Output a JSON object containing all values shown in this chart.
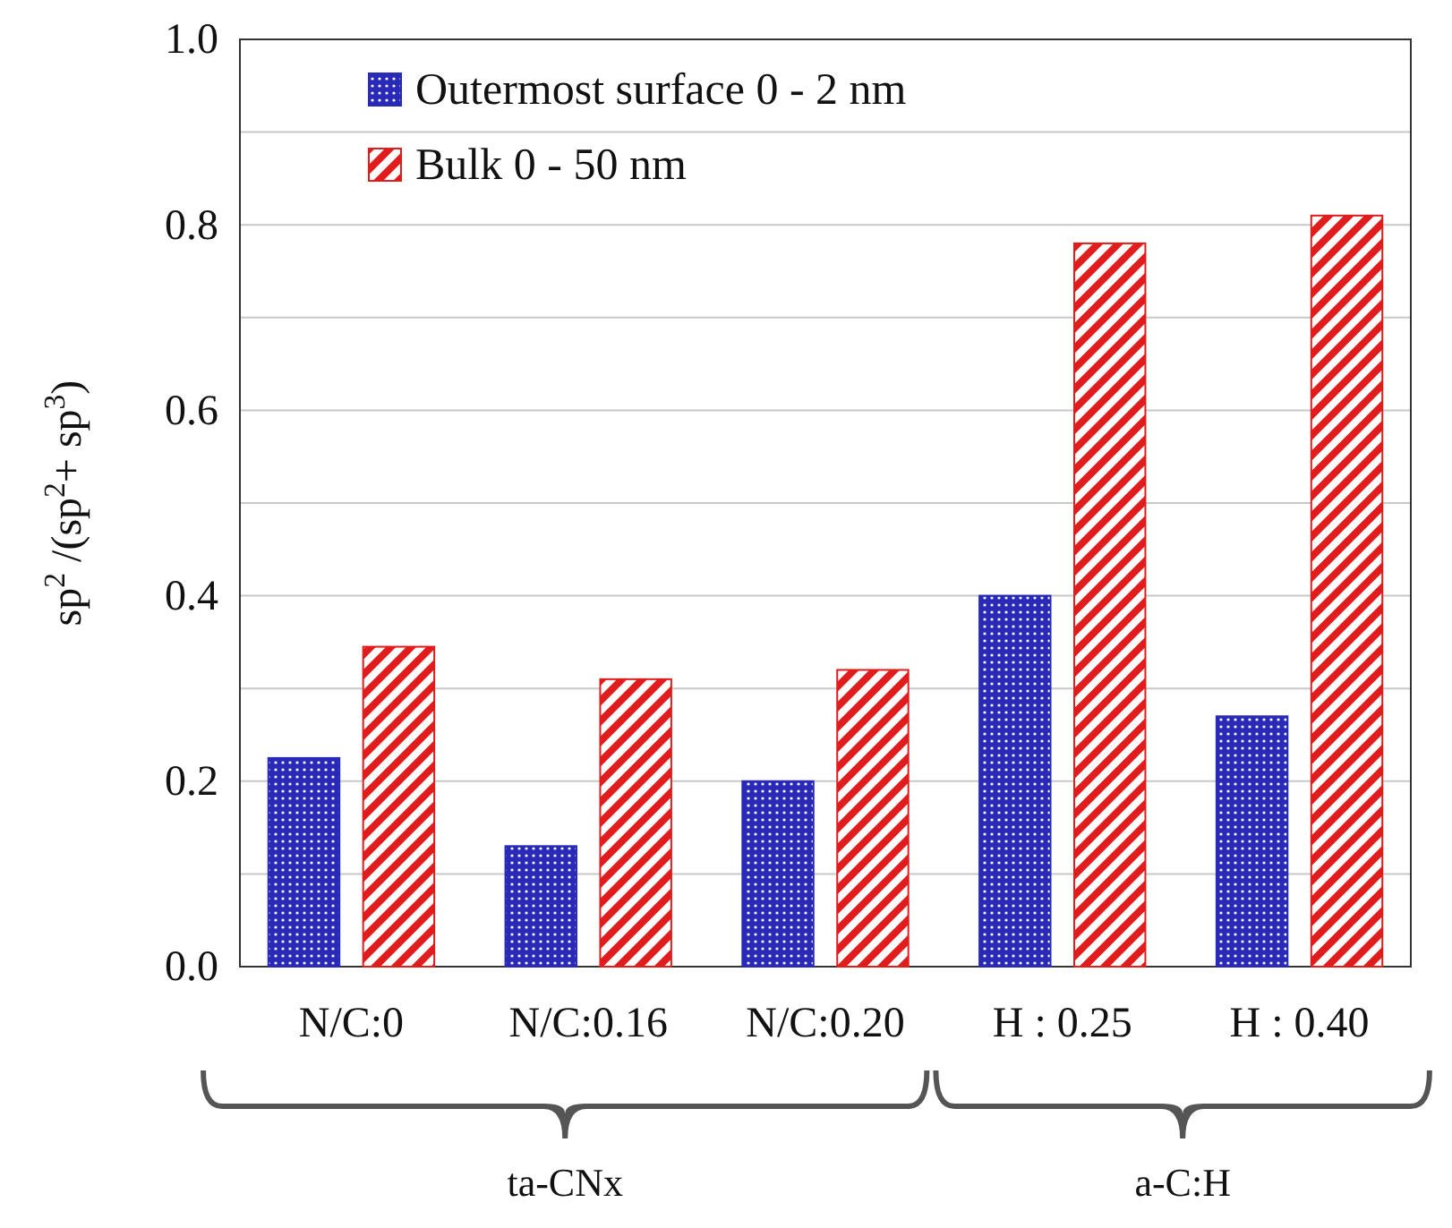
{
  "chart_data": {
    "type": "bar",
    "ylabel": "sp$^{2}$ /(sp$^{2}$+ sp$^{3}$)",
    "categories": [
      "N/C:0",
      "N/C:0.16",
      "N/C:0.20",
      "H : 0.25",
      "H : 0.40"
    ],
    "series": [
      {
        "name": "Outermost surface 0 - 2 nm",
        "color": "#2a2ab8",
        "values": [
          0.225,
          0.13,
          0.2,
          0.4,
          0.27
        ]
      },
      {
        "name": "Bulk 0 - 50 nm",
        "color": "#e01c1c",
        "values": [
          0.345,
          0.31,
          0.32,
          0.78,
          0.81
        ]
      }
    ],
    "ylim": [
      0,
      1
    ],
    "yticks": [
      {
        "value": 0,
        "label": "0.0"
      },
      {
        "value": 0.1,
        "label": null
      },
      {
        "value": 0.2,
        "label": "0.2"
      },
      {
        "value": 0.3,
        "label": null
      },
      {
        "value": 0.4,
        "label": "0.4"
      },
      {
        "value": 0.5,
        "label": null
      },
      {
        "value": 0.6,
        "label": "0.6"
      },
      {
        "value": 0.7,
        "label": null
      },
      {
        "value": 0.8,
        "label": "0.8"
      },
      {
        "value": 0.9,
        "label": null
      },
      {
        "value": 1,
        "label": "1.0"
      }
    ],
    "grid": true,
    "legend": "top left",
    "annotations": [
      "ta-CNx",
      "a-C:H"
    ]
  }
}
